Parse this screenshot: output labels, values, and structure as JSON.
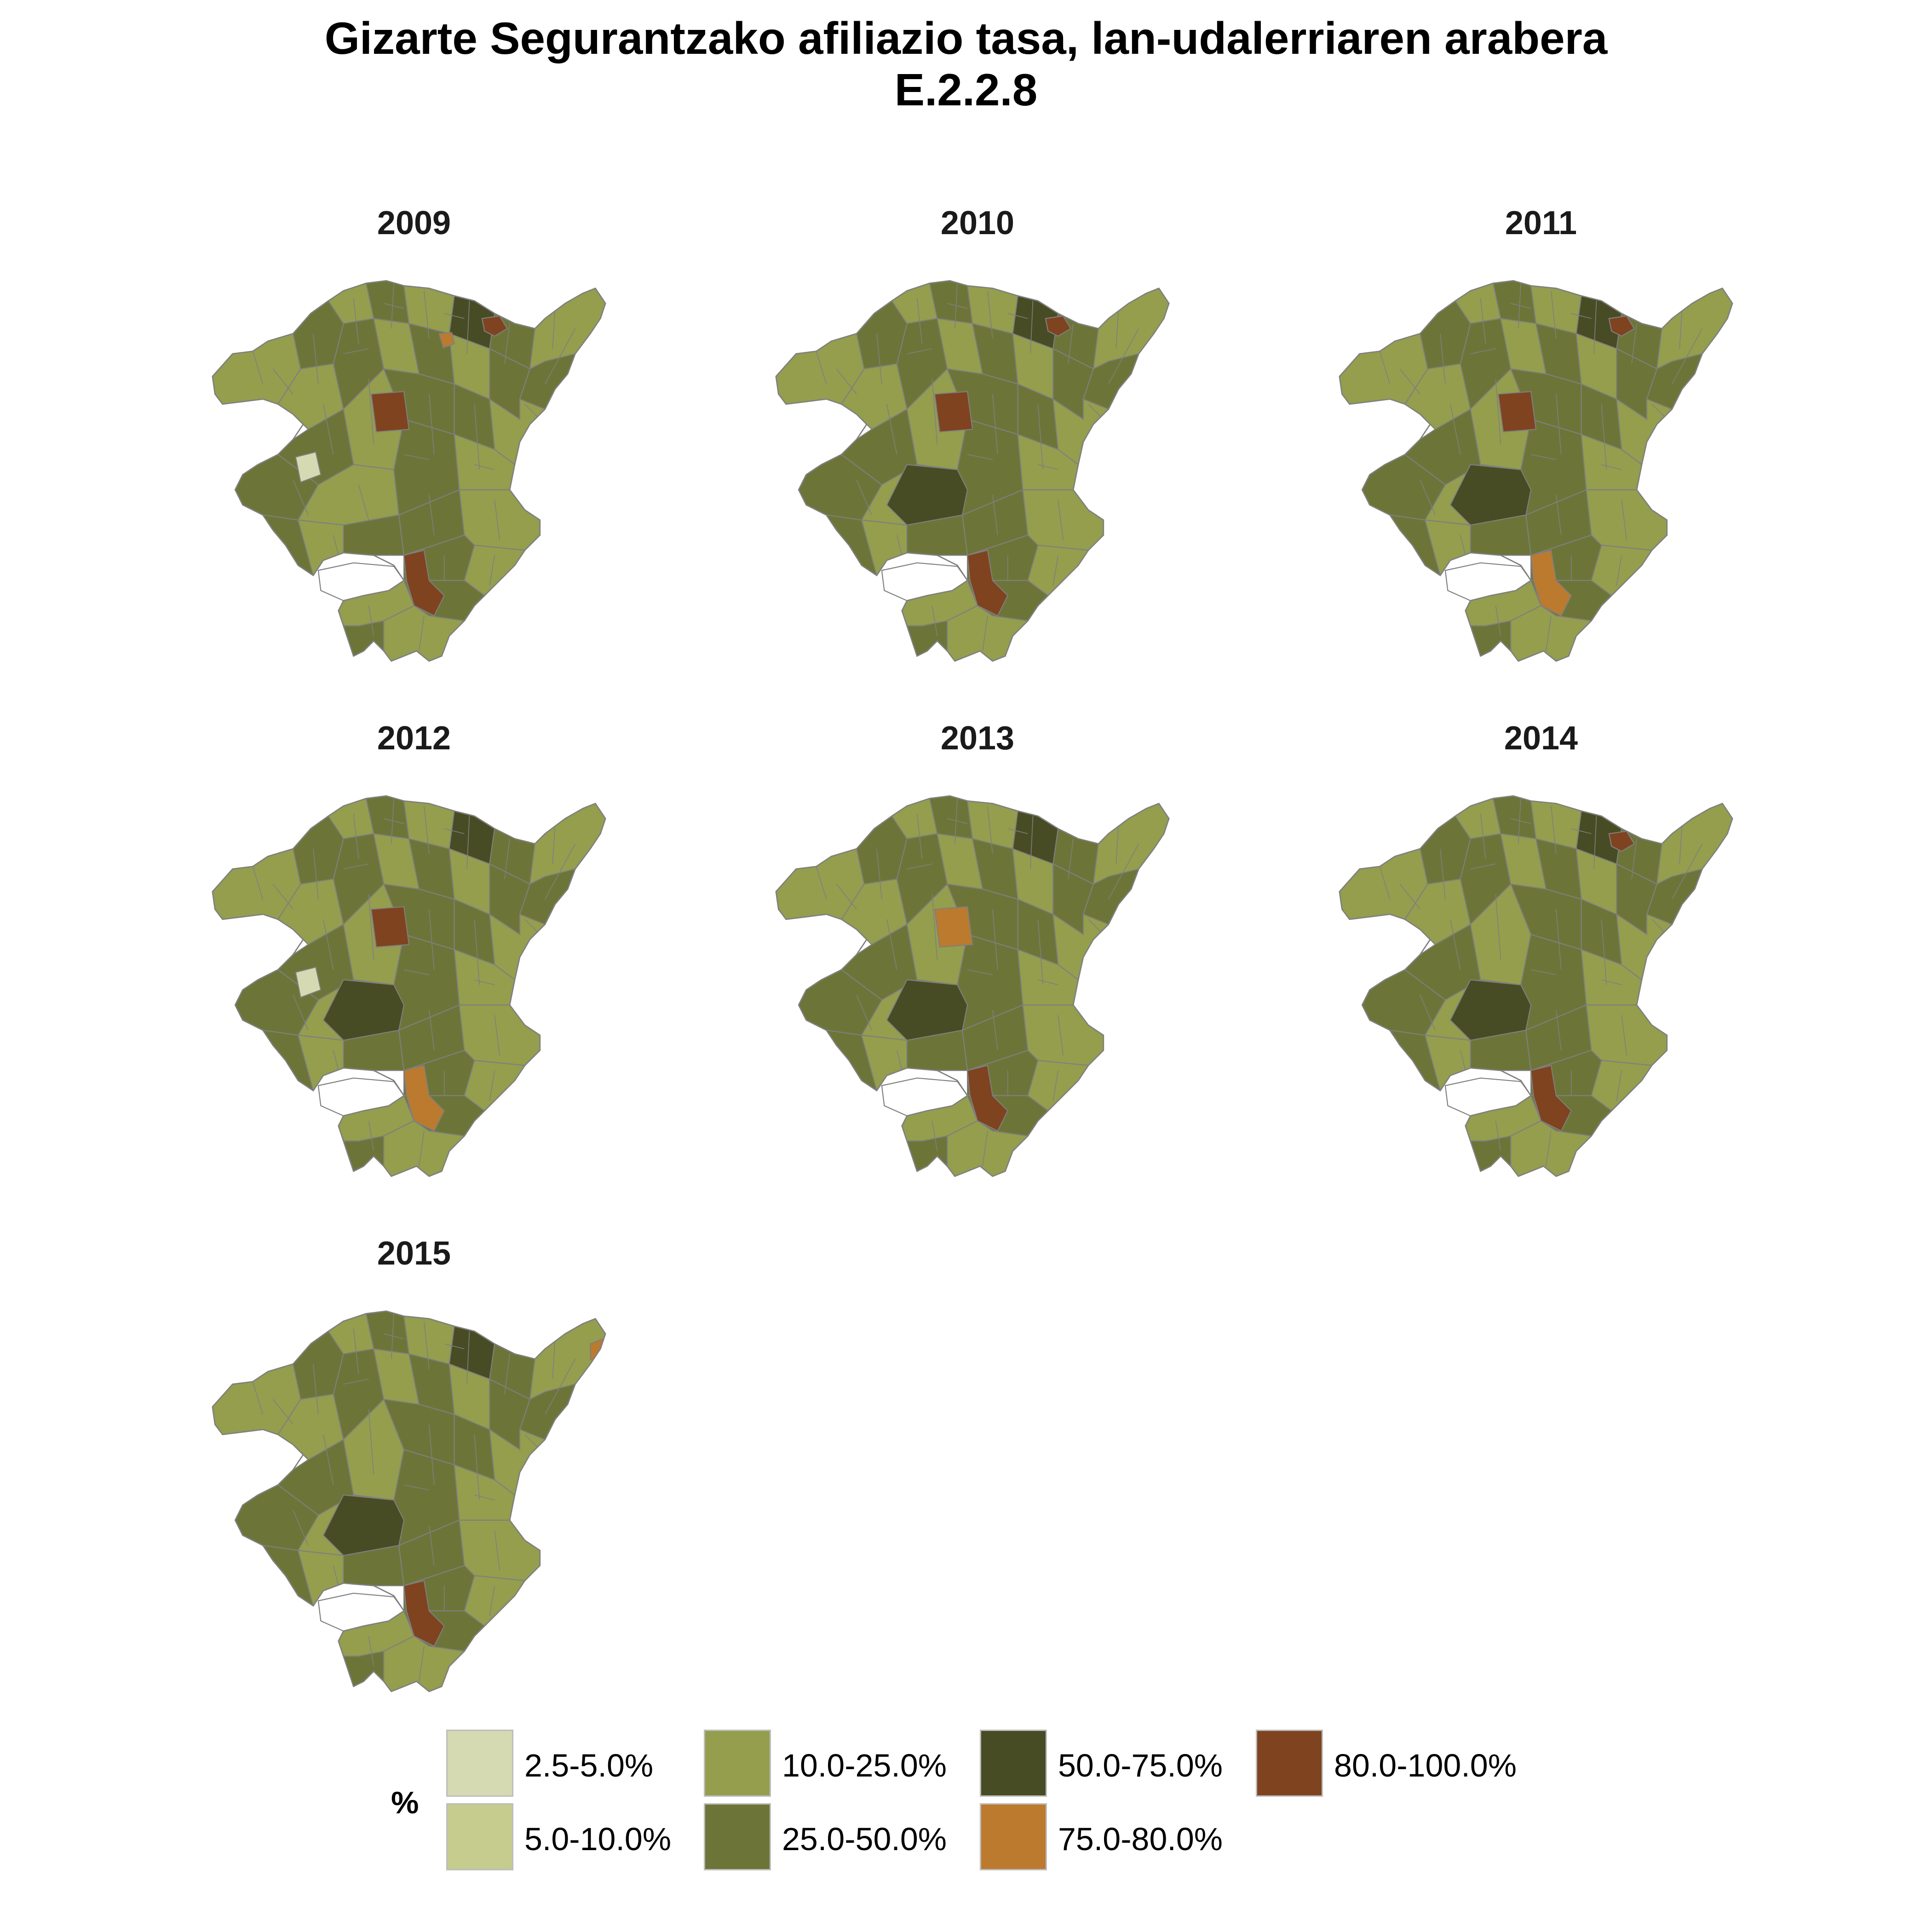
{
  "title": {
    "line1": "Gizarte Segurantzako afiliazio tasa, lan-udalerriaren arabera",
    "line2": "E.2.2.8"
  },
  "colors": {
    "c1": "#d5dab2",
    "c2": "#c5cc8e",
    "c3": "#949e4d",
    "c4": "#6c7537",
    "c5": "#474c24",
    "c6": "#bb7a2d",
    "c7": "#7f4320",
    "border": "#7f7f7f"
  },
  "panels": [
    {
      "year": "2009",
      "highlights": [
        "c7-north",
        "c6-north",
        "c7-center",
        "c7-south",
        "c1-west"
      ]
    },
    {
      "year": "2010",
      "highlights": [
        "c7-north",
        "c7-center",
        "c5-center",
        "c7-south"
      ]
    },
    {
      "year": "2011",
      "highlights": [
        "c7-north",
        "c7-center",
        "c5-center",
        "c6-south"
      ]
    },
    {
      "year": "2012",
      "highlights": [
        "c7-center",
        "c5-center",
        "c6-south",
        "c1-west"
      ]
    },
    {
      "year": "2013",
      "highlights": [
        "c6-center",
        "c5-center",
        "c7-south"
      ]
    },
    {
      "year": "2014",
      "highlights": [
        "c7-north",
        "c5-center",
        "c7-south"
      ]
    },
    {
      "year": "2015",
      "highlights": [
        "c6-east",
        "c5-center",
        "c7-south"
      ]
    }
  ],
  "legend": {
    "title": "%",
    "items": [
      {
        "label": "2.5-5.0%",
        "color": "#d5dab2"
      },
      {
        "label": "5.0-10.0%",
        "color": "#c5cc8e"
      },
      {
        "label": "10.0-25.0%",
        "color": "#949e4d"
      },
      {
        "label": "25.0-50.0%",
        "color": "#6c7537"
      },
      {
        "label": "50.0-75.0%",
        "color": "#474c24"
      },
      {
        "label": "75.0-80.0%",
        "color": "#bb7a2d"
      },
      {
        "label": "80.0-100.0%",
        "color": "#7f4320"
      }
    ]
  }
}
